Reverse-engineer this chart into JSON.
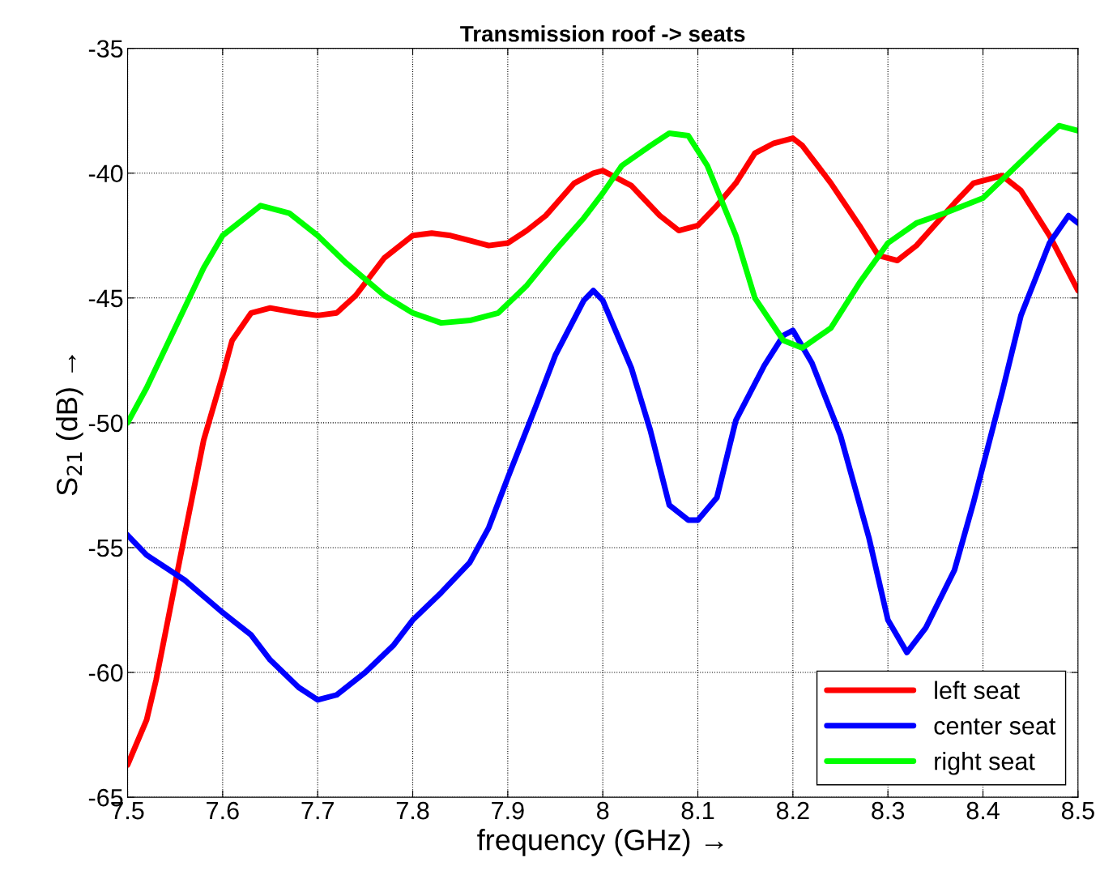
{
  "chart_data": {
    "type": "line",
    "title": "Transmission roof -> seats",
    "xlabel": "frequency (GHz) →",
    "ylabel": "S$_{21}$ (dB) →",
    "xlim": [
      7.5,
      8.5
    ],
    "xticks": [
      7.5,
      7.6,
      7.7,
      7.8,
      7.9,
      8,
      8.1,
      8.2,
      8.3,
      8.4,
      8.5
    ],
    "ylim": [
      -65,
      -35
    ],
    "yticks": [
      -65,
      -60,
      -55,
      -50,
      -45,
      -40,
      -35
    ],
    "grid": true,
    "legend": "bottom right",
    "line_style": "solid",
    "series": [
      {
        "name": "left seat",
        "color": "#ff0000",
        "x": [
          7.5,
          7.52,
          7.53,
          7.56,
          7.58,
          7.6,
          7.61,
          7.63,
          7.65,
          7.68,
          7.7,
          7.72,
          7.74,
          7.77,
          7.8,
          7.82,
          7.84,
          7.86,
          7.88,
          7.9,
          7.92,
          7.94,
          7.97,
          7.99,
          8.0,
          8.03,
          8.06,
          8.08,
          8.1,
          8.12,
          8.14,
          8.16,
          8.18,
          8.2,
          8.21,
          8.24,
          8.27,
          8.29,
          8.31,
          8.33,
          8.37,
          8.39,
          8.42,
          8.44,
          8.47,
          8.5
        ],
        "values": [
          -63.7,
          -61.9,
          -60.3,
          -54.5,
          -50.7,
          -48.1,
          -46.7,
          -45.6,
          -45.4,
          -45.6,
          -45.7,
          -45.6,
          -44.9,
          -43.4,
          -42.5,
          -42.4,
          -42.5,
          -42.7,
          -42.9,
          -42.8,
          -42.3,
          -41.7,
          -40.4,
          -40.0,
          -39.9,
          -40.5,
          -41.7,
          -42.3,
          -42.1,
          -41.3,
          -40.4,
          -39.2,
          -38.8,
          -38.6,
          -38.9,
          -40.4,
          -42.1,
          -43.3,
          -43.5,
          -42.9,
          -41.2,
          -40.4,
          -40.1,
          -40.7,
          -42.5,
          -44.7
        ]
      },
      {
        "name": "center seat",
        "color": "#0000ff",
        "x": [
          7.5,
          7.52,
          7.56,
          7.6,
          7.63,
          7.65,
          7.68,
          7.7,
          7.72,
          7.75,
          7.78,
          7.8,
          7.83,
          7.86,
          7.88,
          7.9,
          7.93,
          7.95,
          7.98,
          7.99,
          8.0,
          8.03,
          8.05,
          8.07,
          8.09,
          8.1,
          8.12,
          8.14,
          8.17,
          8.19,
          8.2,
          8.22,
          8.25,
          8.28,
          8.3,
          8.32,
          8.34,
          8.37,
          8.39,
          8.42,
          8.44,
          8.47,
          8.49,
          8.5
        ],
        "values": [
          -54.5,
          -55.3,
          -56.3,
          -57.6,
          -58.5,
          -59.5,
          -60.6,
          -61.1,
          -60.9,
          -60.0,
          -58.9,
          -57.9,
          -56.8,
          -55.6,
          -54.2,
          -52.2,
          -49.3,
          -47.3,
          -45.1,
          -44.7,
          -45.1,
          -47.8,
          -50.3,
          -53.3,
          -53.9,
          -53.9,
          -53.0,
          -49.9,
          -47.7,
          -46.5,
          -46.3,
          -47.6,
          -50.5,
          -54.6,
          -57.9,
          -59.2,
          -58.2,
          -55.9,
          -53.2,
          -48.8,
          -45.7,
          -42.8,
          -41.7,
          -42.0
        ]
      },
      {
        "name": "right seat",
        "color": "#00ff00",
        "x": [
          7.5,
          7.52,
          7.55,
          7.58,
          7.6,
          7.63,
          7.64,
          7.67,
          7.7,
          7.73,
          7.77,
          7.8,
          7.83,
          7.86,
          7.89,
          7.92,
          7.95,
          7.98,
          8.0,
          8.02,
          8.05,
          8.07,
          8.09,
          8.11,
          8.14,
          8.16,
          8.19,
          8.21,
          8.24,
          8.27,
          8.3,
          8.33,
          8.36,
          8.4,
          8.43,
          8.46,
          8.48,
          8.5
        ],
        "values": [
          -50.0,
          -48.6,
          -46.2,
          -43.8,
          -42.5,
          -41.6,
          -41.3,
          -41.6,
          -42.5,
          -43.6,
          -44.9,
          -45.6,
          -46.0,
          -45.9,
          -45.6,
          -44.5,
          -43.1,
          -41.8,
          -40.8,
          -39.7,
          -38.9,
          -38.4,
          -38.5,
          -39.7,
          -42.5,
          -45.0,
          -46.7,
          -47.0,
          -46.2,
          -44.4,
          -42.8,
          -42.0,
          -41.6,
          -41.0,
          -39.9,
          -38.8,
          -38.1,
          -38.3
        ]
      }
    ]
  }
}
